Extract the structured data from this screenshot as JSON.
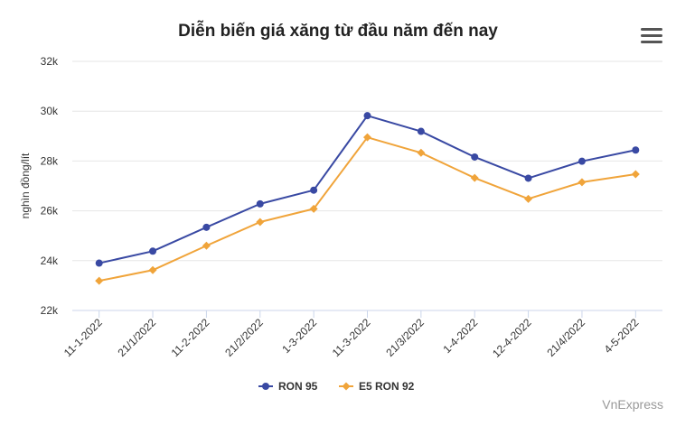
{
  "chart_data": {
    "type": "line",
    "title": "Diễn biến giá xăng từ đầu năm đến nay",
    "xlabel": "",
    "ylabel": "nghìn đồng/lít",
    "categories": [
      "11-1-2022",
      "21/1/2022",
      "11-2-2022",
      "21/2/2022",
      "1-3-2022",
      "11-3-2022",
      "21/3/2022",
      "1-4-2022",
      "12-4-2022",
      "21/4/2022",
      "4-5-2022"
    ],
    "ylim": [
      22000,
      32000
    ],
    "yticks": [
      22000,
      24000,
      26000,
      28000,
      30000,
      32000
    ],
    "ytick_labels": [
      "22k",
      "24k",
      "26k",
      "28k",
      "30k",
      "32k"
    ],
    "grid": true,
    "legend_position": "bottom-center",
    "series": [
      {
        "name": "RON 95",
        "color": "#3949a3",
        "marker": "circle",
        "values": [
          23900,
          24380,
          25340,
          26280,
          26830,
          29820,
          29190,
          28160,
          27310,
          27990,
          28440
        ]
      },
      {
        "name": "E5 RON 92",
        "color": "#f0a43a",
        "marker": "diamond",
        "values": [
          23190,
          23620,
          24600,
          25550,
          26080,
          28950,
          28330,
          27320,
          26480,
          27150,
          27470
        ]
      }
    ]
  },
  "credit": "VnExpress",
  "menu_icon": "hamburger-menu-icon"
}
